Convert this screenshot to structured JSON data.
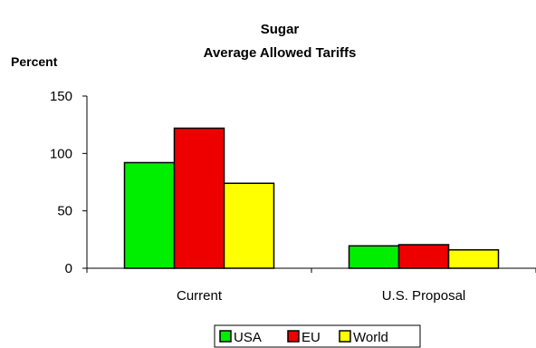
{
  "chart_data": {
    "type": "bar",
    "title": "Sugar",
    "subtitle": "Average Allowed Tariffs",
    "ylabel": "Percent",
    "xlabel": "",
    "categories": [
      "Current",
      "U.S. Proposal"
    ],
    "series": [
      {
        "name": "USA",
        "values": [
          92,
          19.5
        ],
        "color": "#00ee00"
      },
      {
        "name": "EU",
        "values": [
          122,
          20.5
        ],
        "color": "#ee0000"
      },
      {
        "name": "World",
        "values": [
          74,
          16
        ],
        "color": "#ffff00"
      }
    ],
    "ylim": [
      0,
      150
    ],
    "yticks": [
      "0",
      "50",
      "100",
      "150"
    ],
    "grid": false,
    "legend_position": "bottom"
  }
}
